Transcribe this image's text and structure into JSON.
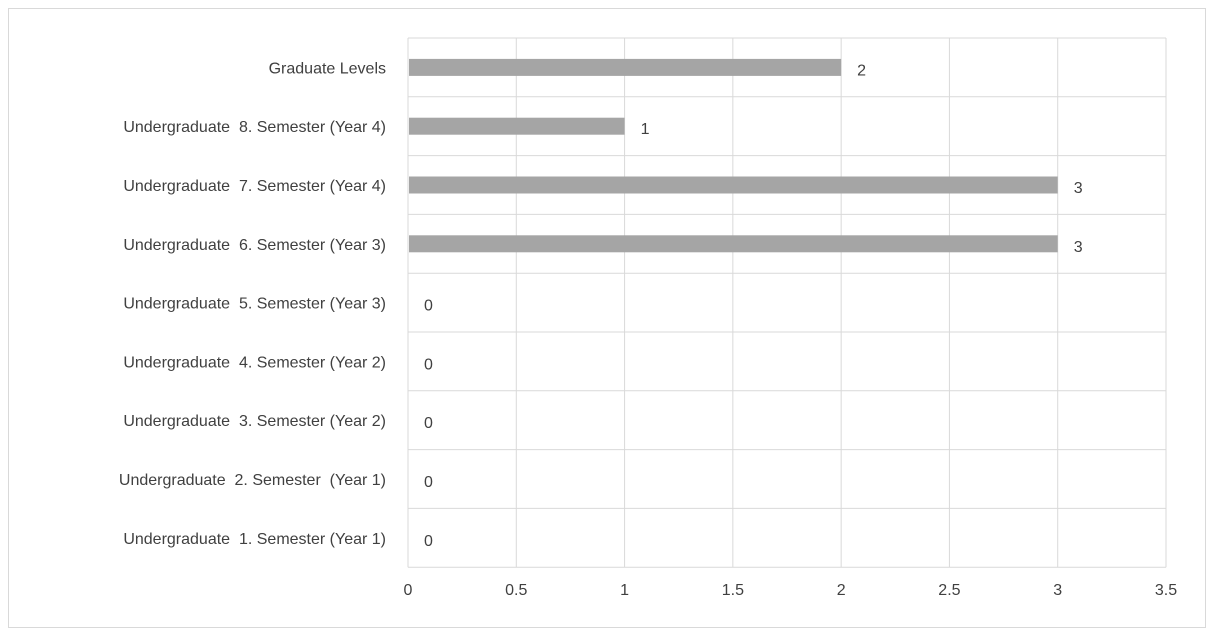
{
  "chart_data": {
    "type": "bar",
    "orientation": "horizontal",
    "title": "",
    "xlabel": "",
    "ylabel": "",
    "categories": [
      "Undergraduate  1. Semester (Year 1)",
      "Undergraduate  2. Semester  (Year 1)",
      "Undergraduate  3. Semester (Year 2)",
      "Undergraduate  4. Semester (Year 2)",
      "Undergraduate  5. Semester (Year 3)",
      "Undergraduate  6. Semester (Year 3)",
      "Undergraduate  7. Semester (Year 4)",
      "Undergraduate  8. Semester (Year 4)",
      "Graduate Levels"
    ],
    "values": [
      0,
      0,
      0,
      0,
      0,
      3,
      3,
      1,
      2
    ],
    "data_labels": [
      "0",
      "0",
      "0",
      "0",
      "0",
      "3",
      "3",
      "1",
      "2"
    ],
    "xlim": [
      0,
      3.5
    ],
    "xticks": [
      "0",
      "0.5",
      "1",
      "1.5",
      "2",
      "2.5",
      "3",
      "3.5"
    ],
    "grid": true,
    "legend": "none",
    "bar_color": "#a5a5a5",
    "grid_color": "#d9d9d9",
    "text_color": "#404040"
  }
}
